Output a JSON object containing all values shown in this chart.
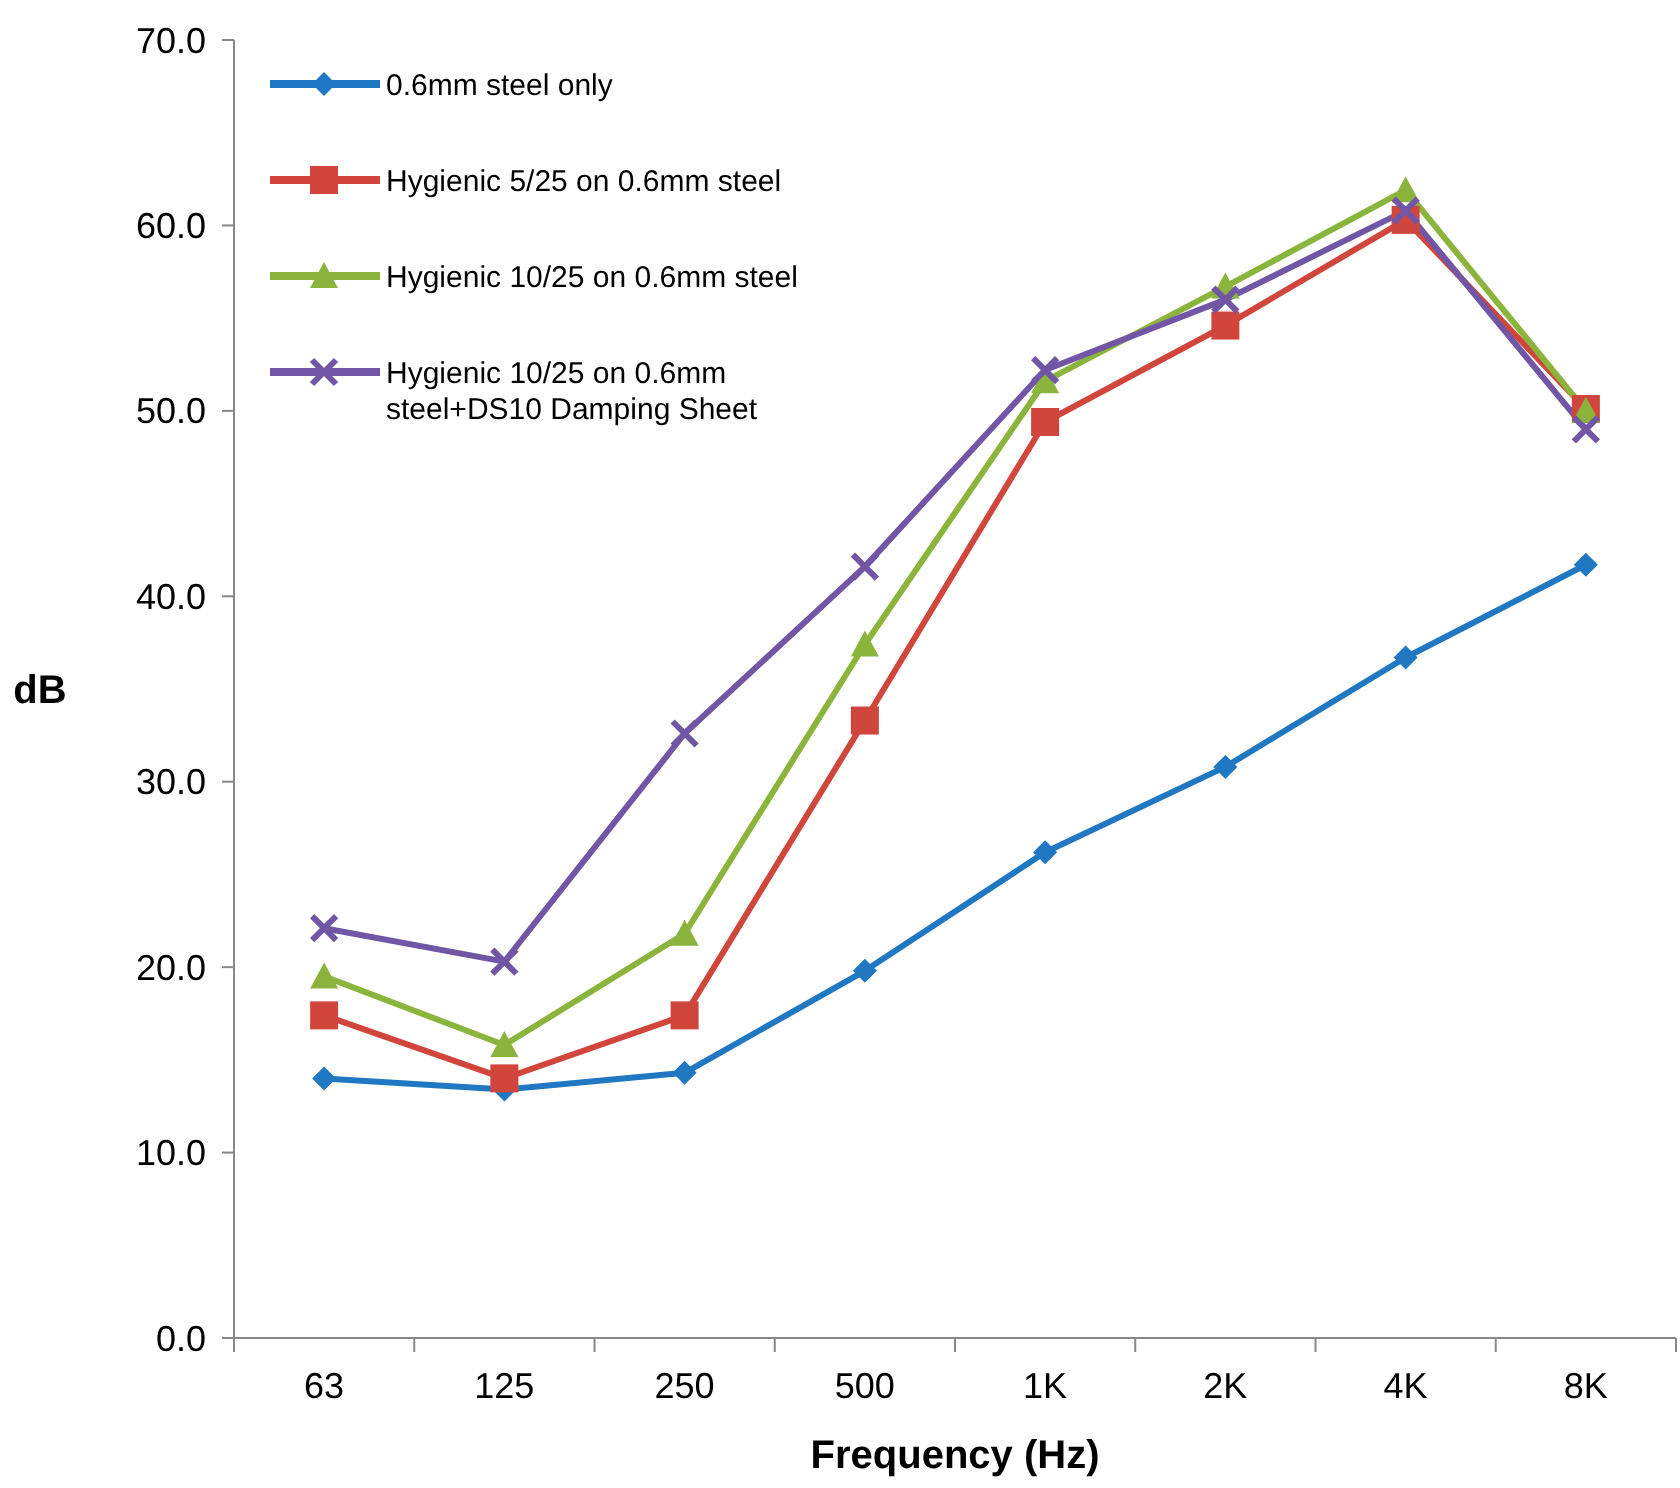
{
  "chart_data": {
    "type": "line",
    "xlabel": "Frequency (Hz)",
    "ylabel": "dB",
    "categories": [
      "63",
      "125",
      "250",
      "500",
      "1K",
      "2K",
      "4K",
      "8K"
    ],
    "ylim": [
      0,
      70
    ],
    "yticks": [
      {
        "value": 0,
        "label": "0.0"
      },
      {
        "value": 10,
        "label": "10.0"
      },
      {
        "value": 20,
        "label": "20.0"
      },
      {
        "value": 30,
        "label": "30.0"
      },
      {
        "value": 40,
        "label": "40.0"
      },
      {
        "value": 50,
        "label": "50.0"
      },
      {
        "value": 60,
        "label": "60.0"
      },
      {
        "value": 70,
        "label": "70.0"
      }
    ],
    "grid": false,
    "legend": "top left",
    "line_style": "solid",
    "series": [
      {
        "name": "0.6mm steel only",
        "color": "#1f78c1",
        "marker": "diamond",
        "values": [
          14.0,
          13.4,
          14.3,
          19.8,
          26.2,
          30.8,
          36.7,
          41.7
        ]
      },
      {
        "name": "Hygienic 5/25 on 0.6mm steel",
        "color": "#d0463d",
        "marker": "square",
        "values": [
          17.4,
          14.0,
          17.4,
          33.3,
          49.4,
          54.6,
          60.3,
          50.1
        ]
      },
      {
        "name": "Hygienic 10/25 on 0.6mm steel",
        "color": "#8bb43c",
        "marker": "triangle",
        "values": [
          19.5,
          15.8,
          21.8,
          37.4,
          51.6,
          56.7,
          61.9,
          50.0
        ]
      },
      {
        "name": "Hygienic 10/25 on 0.6mm steel+DS10 Damping Sheet",
        "color": "#7156a6",
        "marker": "cross",
        "values": [
          22.1,
          20.3,
          32.6,
          41.6,
          52.2,
          56.0,
          60.8,
          49.0
        ]
      }
    ]
  }
}
